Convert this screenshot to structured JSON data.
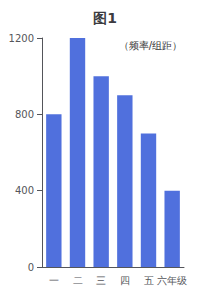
{
  "chart_data": {
    "type": "bar",
    "title": "图1",
    "categories": [
      "一",
      "二",
      "三",
      "四",
      "五",
      "六年级"
    ],
    "values": [
      800,
      1200,
      1000,
      900,
      700,
      400
    ],
    "ylim": [
      0,
      1200
    ],
    "yticks": [
      0,
      400,
      800,
      1200
    ],
    "annotations": [
      {
        "text": "（频率/组距）"
      }
    ],
    "grid": false
  }
}
